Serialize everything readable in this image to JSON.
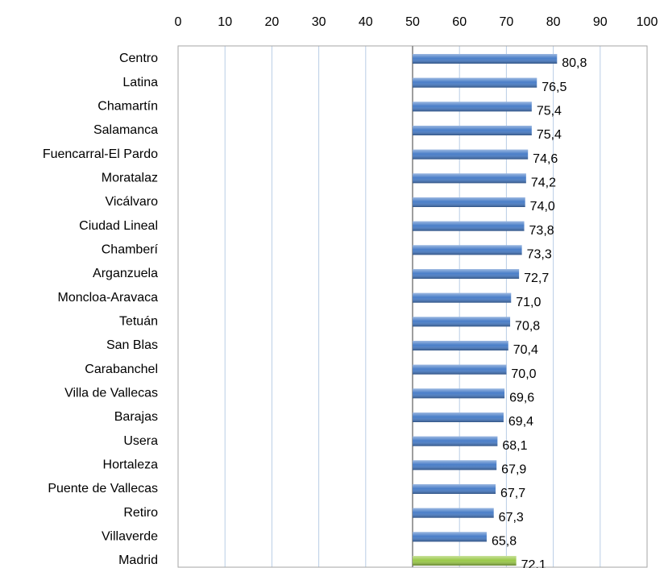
{
  "chart_data": {
    "type": "hbar",
    "categories": [
      "Centro",
      "Latina",
      "Chamartín",
      "Salamanca",
      "Fuencarral-El Pardo",
      "Moratalaz",
      "Vicálvaro",
      "Ciudad Lineal",
      "Chamberí",
      "Arganzuela",
      "Moncloa-Aravaca",
      "Tetuán",
      "San Blas",
      "Carabanchel",
      "Villa de Vallecas",
      "Barajas",
      "Usera",
      "Hortaleza",
      "Puente de Vallecas",
      "Retiro",
      "Villaverde",
      "Madrid"
    ],
    "values": [
      80.8,
      76.5,
      75.4,
      75.4,
      74.6,
      74.2,
      74.0,
      73.8,
      73.3,
      72.7,
      71.0,
      70.8,
      70.4,
      70.0,
      69.6,
      69.4,
      68.1,
      67.9,
      67.7,
      67.3,
      65.8,
      72.1
    ],
    "value_labels": [
      "80,8",
      "76,5",
      "75,4",
      "75,4",
      "74,6",
      "74,2",
      "74,0",
      "73,8",
      "73,3",
      "72,7",
      "71,0",
      "70,8",
      "70,4",
      "70,0",
      "69,6",
      "69,4",
      "68,1",
      "67,9",
      "67,7",
      "67,3",
      "65,8",
      "72,1"
    ],
    "colors": [
      "#4a7ec8",
      "#4a7ec8",
      "#4a7ec8",
      "#4a7ec8",
      "#4a7ec8",
      "#4a7ec8",
      "#4a7ec8",
      "#4a7ec8",
      "#4a7ec8",
      "#4a7ec8",
      "#4a7ec8",
      "#4a7ec8",
      "#4a7ec8",
      "#4a7ec8",
      "#4a7ec8",
      "#4a7ec8",
      "#4a7ec8",
      "#4a7ec8",
      "#4a7ec8",
      "#4a7ec8",
      "#4a7ec8",
      "#9bc94a"
    ],
    "baseline": 50,
    "xlim": [
      0,
      100
    ],
    "xticks": [
      0,
      10,
      20,
      30,
      40,
      50,
      60,
      70,
      80,
      90,
      100
    ],
    "grid": true
  }
}
